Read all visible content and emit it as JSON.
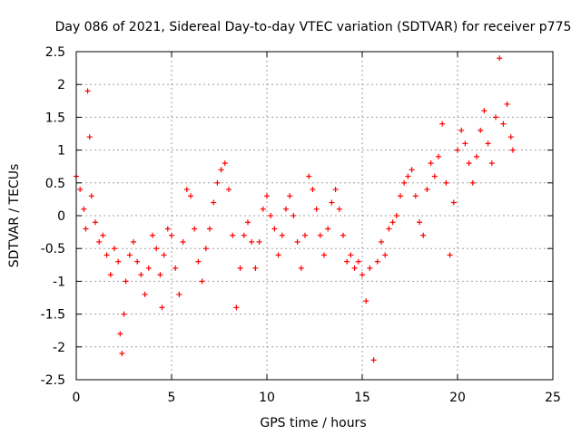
{
  "chart_data": {
    "type": "scatter",
    "title": "Day 086 of 2021, Sidereal Day-to-day VTEC variation (SDTVAR) for receiver p775",
    "xlabel": "GPS time / hours",
    "ylabel": "SDTVAR / TECUs",
    "xlim": [
      0,
      25
    ],
    "ylim": [
      -2.5,
      2.5
    ],
    "xticks": [
      0,
      5,
      10,
      15,
      20,
      25
    ],
    "xtick_labels": [
      "0",
      "5",
      "10",
      "15",
      "20",
      "25"
    ],
    "yticks": [
      -2.5,
      -2,
      -1.5,
      -1,
      -0.5,
      0,
      0.5,
      1,
      1.5,
      2,
      2.5
    ],
    "ytick_labels": [
      "-2.5",
      "-2",
      "-1.5",
      "-1",
      "-0.5",
      "0",
      "0.5",
      "1",
      "1.5",
      "2",
      "2.5"
    ],
    "grid": true,
    "marker": "+",
    "color": "#ff0000",
    "series": [
      {
        "name": "p775",
        "x": [
          0.0,
          0.2,
          0.4,
          0.5,
          0.6,
          0.7,
          0.8,
          1.0,
          1.2,
          1.4,
          1.6,
          1.8,
          2.0,
          2.2,
          2.3,
          2.4,
          2.5,
          2.6,
          2.8,
          3.0,
          3.2,
          3.4,
          3.6,
          3.8,
          4.0,
          4.2,
          4.4,
          4.5,
          4.6,
          4.8,
          5.0,
          5.2,
          5.4,
          5.6,
          5.8,
          6.0,
          6.2,
          6.4,
          6.6,
          6.8,
          7.0,
          7.2,
          7.4,
          7.6,
          7.8,
          8.0,
          8.2,
          8.4,
          8.6,
          8.8,
          9.0,
          9.2,
          9.4,
          9.6,
          9.8,
          10.0,
          10.2,
          10.4,
          10.6,
          10.8,
          11.0,
          11.2,
          11.4,
          11.6,
          11.8,
          12.0,
          12.2,
          12.4,
          12.6,
          12.8,
          13.0,
          13.2,
          13.4,
          13.6,
          13.8,
          14.0,
          14.2,
          14.4,
          14.6,
          14.8,
          15.0,
          15.2,
          15.4,
          15.6,
          15.8,
          16.0,
          16.2,
          16.4,
          16.6,
          16.8,
          17.0,
          17.2,
          17.4,
          17.6,
          17.8,
          18.0,
          18.2,
          18.4,
          18.6,
          18.8,
          19.0,
          19.2,
          19.4,
          19.6,
          19.8,
          20.0,
          20.2,
          20.4,
          20.6,
          20.8,
          21.0,
          21.2,
          21.4,
          21.6,
          21.8,
          22.0,
          22.2,
          22.4,
          22.6,
          22.8,
          22.9
        ],
        "y": [
          0.6,
          0.4,
          0.1,
          -0.2,
          1.9,
          1.2,
          0.3,
          -0.1,
          -0.4,
          -0.3,
          -0.6,
          -0.9,
          -0.5,
          -0.7,
          -1.8,
          -2.1,
          -1.5,
          -1.0,
          -0.6,
          -0.4,
          -0.7,
          -0.9,
          -1.2,
          -0.8,
          -0.3,
          -0.5,
          -0.9,
          -1.4,
          -0.6,
          -0.2,
          -0.3,
          -0.8,
          -1.2,
          -0.4,
          0.4,
          0.3,
          -0.2,
          -0.7,
          -1.0,
          -0.5,
          -0.2,
          0.2,
          0.5,
          0.7,
          0.8,
          0.4,
          -0.3,
          -1.4,
          -0.8,
          -0.3,
          -0.1,
          -0.4,
          -0.8,
          -0.4,
          0.1,
          0.3,
          0.0,
          -0.2,
          -0.6,
          -0.3,
          0.1,
          0.3,
          0.0,
          -0.4,
          -0.8,
          -0.3,
          0.6,
          0.4,
          0.1,
          -0.3,
          -0.6,
          -0.2,
          0.2,
          0.4,
          0.1,
          -0.3,
          -0.7,
          -0.6,
          -0.8,
          -0.7,
          -0.9,
          -1.3,
          -0.8,
          -2.2,
          -0.7,
          -0.4,
          -0.6,
          -0.2,
          -0.1,
          0.0,
          0.3,
          0.5,
          0.6,
          0.7,
          0.3,
          -0.1,
          -0.3,
          0.4,
          0.8,
          0.6,
          0.9,
          1.4,
          0.5,
          -0.6,
          0.2,
          1.0,
          1.3,
          1.1,
          0.8,
          0.5,
          0.9,
          1.3,
          1.6,
          1.1,
          0.8,
          1.5,
          2.4,
          1.4,
          1.7,
          1.2,
          1.0
        ]
      }
    ]
  }
}
